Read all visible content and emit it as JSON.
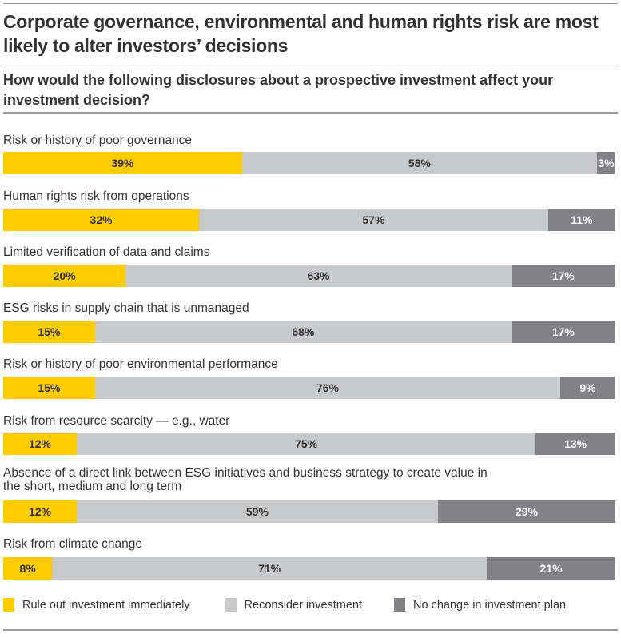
{
  "title": "Corporate governance, environmental and human rights risk are most likely to alter investors’ decisions",
  "subtitle": "How would the following disclosures about a prospective investment affect your investment decision?",
  "colors": {
    "rule_out": "#ffcc00",
    "reconsider": "#c8c9cb",
    "no_change": "#818186"
  },
  "chart_data": {
    "type": "bar",
    "orientation": "horizontal-stacked-100",
    "title": "Corporate governance, environmental and human rights risk are most likely to alter investors’ decisions",
    "subtitle": "How would the following disclosures about a prospective investment affect your investment decision?",
    "categories": [
      "Risk or history of poor governance",
      "Human rights risk from operations",
      "Limited verification of data and claims",
      "ESG risks in supply chain that is unmanaged",
      "Risk or history of poor environmental performance",
      "Risk from resource scarcity — e.g., water",
      "Absence of a direct link between ESG initiatives and business strategy to create value in the short, medium and long term",
      "Risk from climate change"
    ],
    "series": [
      {
        "name": "Rule out investment immediately",
        "values": [
          39,
          32,
          20,
          15,
          15,
          12,
          12,
          8
        ],
        "labels": [
          "39%",
          "32%",
          "20%",
          "15%",
          "15%",
          "12%",
          "12%",
          "8%"
        ]
      },
      {
        "name": "Reconsider investment",
        "values": [
          58,
          57,
          63,
          68,
          76,
          75,
          59,
          71
        ],
        "labels": [
          "58%",
          "57%",
          "63%",
          "68%",
          "76%",
          "75%",
          "59%",
          "71%"
        ]
      },
      {
        "name": "No change in investment plan",
        "values": [
          3,
          11,
          17,
          17,
          9,
          13,
          29,
          21
        ],
        "labels": [
          "3%",
          "11%",
          "17%",
          "17%",
          "9%",
          "13%",
          "29%",
          "21%"
        ]
      }
    ],
    "xlim": [
      0,
      100
    ],
    "legend": "bottom"
  }
}
